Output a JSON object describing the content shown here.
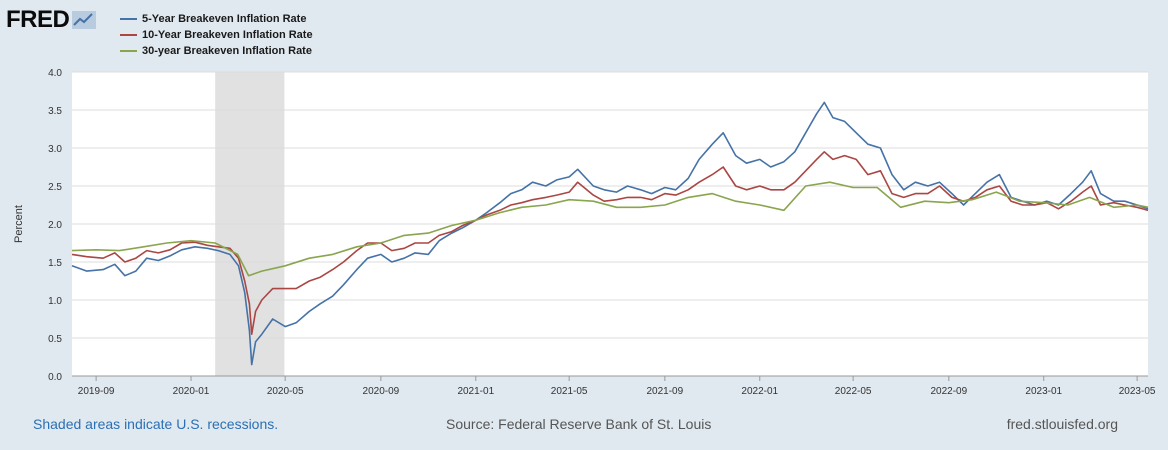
{
  "header": {
    "logo_text": "FRED"
  },
  "footer": {
    "note": "Shaded areas indicate U.S. recessions.",
    "source": "Source: Federal Reserve Bank of St. Louis",
    "site": "fred.stlouisfed.org"
  },
  "colors": {
    "background": "#e1e9f0",
    "plot_background": "#ffffff",
    "recession_shade": "#e1e1e1"
  },
  "chart_data": {
    "type": "line",
    "title": "",
    "xlabel": "",
    "ylabel": "Percent",
    "ylim": [
      0,
      4
    ],
    "yticks": [
      "0.0",
      "0.5",
      "1.0",
      "1.5",
      "2.0",
      "2.5",
      "3.0",
      "3.5",
      "4.0"
    ],
    "xlim": [
      "2019-08-01",
      "2023-05-15"
    ],
    "xticks": [
      "2019-09",
      "2020-01",
      "2020-05",
      "2020-09",
      "2021-01",
      "2021-05",
      "2021-09",
      "2022-01",
      "2022-05",
      "2022-09",
      "2023-01",
      "2023-05"
    ],
    "grid": true,
    "legend_position": "top-left",
    "recessions": [
      [
        "2020-02-01",
        "2020-04-30"
      ]
    ],
    "series": [
      {
        "name": "5-Year Breakeven Inflation Rate",
        "color": "#4572a7",
        "points": [
          [
            "2019-08-01",
            1.45
          ],
          [
            "2019-08-20",
            1.38
          ],
          [
            "2019-09-10",
            1.4
          ],
          [
            "2019-09-25",
            1.47
          ],
          [
            "2019-10-08",
            1.32
          ],
          [
            "2019-10-22",
            1.38
          ],
          [
            "2019-11-05",
            1.55
          ],
          [
            "2019-11-20",
            1.52
          ],
          [
            "2019-12-05",
            1.58
          ],
          [
            "2019-12-20",
            1.66
          ],
          [
            "2020-01-06",
            1.7
          ],
          [
            "2020-01-22",
            1.68
          ],
          [
            "2020-02-05",
            1.65
          ],
          [
            "2020-02-20",
            1.6
          ],
          [
            "2020-03-02",
            1.45
          ],
          [
            "2020-03-10",
            1.1
          ],
          [
            "2020-03-16",
            0.6
          ],
          [
            "2020-03-19",
            0.15
          ],
          [
            "2020-03-24",
            0.45
          ],
          [
            "2020-04-01",
            0.55
          ],
          [
            "2020-04-15",
            0.75
          ],
          [
            "2020-05-01",
            0.65
          ],
          [
            "2020-05-15",
            0.7
          ],
          [
            "2020-06-01",
            0.85
          ],
          [
            "2020-06-15",
            0.95
          ],
          [
            "2020-07-01",
            1.05
          ],
          [
            "2020-07-15",
            1.2
          ],
          [
            "2020-08-01",
            1.4
          ],
          [
            "2020-08-15",
            1.55
          ],
          [
            "2020-09-01",
            1.6
          ],
          [
            "2020-09-15",
            1.5
          ],
          [
            "2020-10-01",
            1.55
          ],
          [
            "2020-10-15",
            1.62
          ],
          [
            "2020-11-01",
            1.6
          ],
          [
            "2020-11-15",
            1.78
          ],
          [
            "2020-12-01",
            1.88
          ],
          [
            "2020-12-15",
            1.95
          ],
          [
            "2021-01-01",
            2.05
          ],
          [
            "2021-01-15",
            2.15
          ],
          [
            "2021-02-01",
            2.28
          ],
          [
            "2021-02-15",
            2.4
          ],
          [
            "2021-03-01",
            2.45
          ],
          [
            "2021-03-15",
            2.55
          ],
          [
            "2021-04-01",
            2.5
          ],
          [
            "2021-04-15",
            2.58
          ],
          [
            "2021-05-01",
            2.62
          ],
          [
            "2021-05-12",
            2.72
          ],
          [
            "2021-06-01",
            2.5
          ],
          [
            "2021-06-15",
            2.45
          ],
          [
            "2021-07-01",
            2.42
          ],
          [
            "2021-07-15",
            2.5
          ],
          [
            "2021-08-01",
            2.45
          ],
          [
            "2021-08-15",
            2.4
          ],
          [
            "2021-09-01",
            2.48
          ],
          [
            "2021-09-15",
            2.45
          ],
          [
            "2021-10-01",
            2.6
          ],
          [
            "2021-10-15",
            2.85
          ],
          [
            "2021-11-01",
            3.05
          ],
          [
            "2021-11-15",
            3.2
          ],
          [
            "2021-12-01",
            2.9
          ],
          [
            "2021-12-15",
            2.8
          ],
          [
            "2022-01-01",
            2.85
          ],
          [
            "2022-01-15",
            2.75
          ],
          [
            "2022-02-01",
            2.82
          ],
          [
            "2022-02-15",
            2.95
          ],
          [
            "2022-03-01",
            3.2
          ],
          [
            "2022-03-15",
            3.45
          ],
          [
            "2022-03-25",
            3.6
          ],
          [
            "2022-04-05",
            3.4
          ],
          [
            "2022-04-20",
            3.35
          ],
          [
            "2022-05-05",
            3.2
          ],
          [
            "2022-05-20",
            3.05
          ],
          [
            "2022-06-05",
            3.0
          ],
          [
            "2022-06-20",
            2.65
          ],
          [
            "2022-07-05",
            2.45
          ],
          [
            "2022-07-20",
            2.55
          ],
          [
            "2022-08-05",
            2.5
          ],
          [
            "2022-08-20",
            2.55
          ],
          [
            "2022-09-05",
            2.4
          ],
          [
            "2022-09-20",
            2.25
          ],
          [
            "2022-10-05",
            2.4
          ],
          [
            "2022-10-20",
            2.55
          ],
          [
            "2022-11-05",
            2.65
          ],
          [
            "2022-11-20",
            2.35
          ],
          [
            "2022-12-05",
            2.3
          ],
          [
            "2022-12-20",
            2.25
          ],
          [
            "2023-01-05",
            2.3
          ],
          [
            "2023-01-20",
            2.25
          ],
          [
            "2023-02-05",
            2.4
          ],
          [
            "2023-02-20",
            2.55
          ],
          [
            "2023-03-03",
            2.7
          ],
          [
            "2023-03-15",
            2.4
          ],
          [
            "2023-04-01",
            2.3
          ],
          [
            "2023-04-15",
            2.3
          ],
          [
            "2023-05-01",
            2.25
          ],
          [
            "2023-05-15",
            2.2
          ]
        ]
      },
      {
        "name": "10-Year Breakeven Inflation Rate",
        "color": "#aa4643",
        "points": [
          [
            "2019-08-01",
            1.6
          ],
          [
            "2019-08-20",
            1.57
          ],
          [
            "2019-09-10",
            1.55
          ],
          [
            "2019-09-25",
            1.62
          ],
          [
            "2019-10-08",
            1.5
          ],
          [
            "2019-10-22",
            1.55
          ],
          [
            "2019-11-05",
            1.65
          ],
          [
            "2019-11-20",
            1.62
          ],
          [
            "2019-12-05",
            1.66
          ],
          [
            "2019-12-20",
            1.75
          ],
          [
            "2020-01-06",
            1.76
          ],
          [
            "2020-01-22",
            1.72
          ],
          [
            "2020-02-05",
            1.7
          ],
          [
            "2020-02-20",
            1.68
          ],
          [
            "2020-03-02",
            1.55
          ],
          [
            "2020-03-10",
            1.25
          ],
          [
            "2020-03-16",
            0.95
          ],
          [
            "2020-03-19",
            0.55
          ],
          [
            "2020-03-24",
            0.85
          ],
          [
            "2020-04-01",
            1.0
          ],
          [
            "2020-04-15",
            1.15
          ],
          [
            "2020-05-01",
            1.15
          ],
          [
            "2020-05-15",
            1.15
          ],
          [
            "2020-06-01",
            1.25
          ],
          [
            "2020-06-15",
            1.3
          ],
          [
            "2020-07-01",
            1.4
          ],
          [
            "2020-07-15",
            1.5
          ],
          [
            "2020-08-01",
            1.65
          ],
          [
            "2020-08-15",
            1.75
          ],
          [
            "2020-09-01",
            1.75
          ],
          [
            "2020-09-15",
            1.65
          ],
          [
            "2020-10-01",
            1.68
          ],
          [
            "2020-10-15",
            1.75
          ],
          [
            "2020-11-01",
            1.75
          ],
          [
            "2020-11-15",
            1.85
          ],
          [
            "2020-12-01",
            1.9
          ],
          [
            "2020-12-15",
            1.98
          ],
          [
            "2021-01-01",
            2.05
          ],
          [
            "2021-01-15",
            2.12
          ],
          [
            "2021-02-01",
            2.18
          ],
          [
            "2021-02-15",
            2.25
          ],
          [
            "2021-03-01",
            2.28
          ],
          [
            "2021-03-15",
            2.32
          ],
          [
            "2021-04-01",
            2.35
          ],
          [
            "2021-04-15",
            2.38
          ],
          [
            "2021-05-01",
            2.42
          ],
          [
            "2021-05-12",
            2.55
          ],
          [
            "2021-06-01",
            2.38
          ],
          [
            "2021-06-15",
            2.3
          ],
          [
            "2021-07-01",
            2.32
          ],
          [
            "2021-07-15",
            2.35
          ],
          [
            "2021-08-01",
            2.35
          ],
          [
            "2021-08-15",
            2.32
          ],
          [
            "2021-09-01",
            2.4
          ],
          [
            "2021-09-15",
            2.38
          ],
          [
            "2021-10-01",
            2.45
          ],
          [
            "2021-10-15",
            2.55
          ],
          [
            "2021-11-01",
            2.65
          ],
          [
            "2021-11-15",
            2.75
          ],
          [
            "2021-12-01",
            2.5
          ],
          [
            "2021-12-15",
            2.45
          ],
          [
            "2022-01-01",
            2.5
          ],
          [
            "2022-01-15",
            2.45
          ],
          [
            "2022-02-01",
            2.45
          ],
          [
            "2022-02-15",
            2.55
          ],
          [
            "2022-03-01",
            2.7
          ],
          [
            "2022-03-15",
            2.85
          ],
          [
            "2022-03-25",
            2.95
          ],
          [
            "2022-04-05",
            2.85
          ],
          [
            "2022-04-20",
            2.9
          ],
          [
            "2022-05-05",
            2.85
          ],
          [
            "2022-05-20",
            2.65
          ],
          [
            "2022-06-05",
            2.7
          ],
          [
            "2022-06-20",
            2.4
          ],
          [
            "2022-07-05",
            2.35
          ],
          [
            "2022-07-20",
            2.4
          ],
          [
            "2022-08-05",
            2.4
          ],
          [
            "2022-08-20",
            2.5
          ],
          [
            "2022-09-05",
            2.35
          ],
          [
            "2022-09-20",
            2.3
          ],
          [
            "2022-10-05",
            2.35
          ],
          [
            "2022-10-20",
            2.45
          ],
          [
            "2022-11-05",
            2.5
          ],
          [
            "2022-11-20",
            2.3
          ],
          [
            "2022-12-05",
            2.25
          ],
          [
            "2022-12-20",
            2.25
          ],
          [
            "2023-01-05",
            2.28
          ],
          [
            "2023-01-20",
            2.2
          ],
          [
            "2023-02-05",
            2.3
          ],
          [
            "2023-02-20",
            2.42
          ],
          [
            "2023-03-03",
            2.5
          ],
          [
            "2023-03-15",
            2.25
          ],
          [
            "2023-04-01",
            2.28
          ],
          [
            "2023-04-15",
            2.25
          ],
          [
            "2023-05-01",
            2.22
          ],
          [
            "2023-05-15",
            2.18
          ]
        ]
      },
      {
        "name": "30-year Breakeven Inflation Rate",
        "color": "#89a54e",
        "points": [
          [
            "2019-08-01",
            1.65
          ],
          [
            "2019-09-01",
            1.66
          ],
          [
            "2019-10-01",
            1.65
          ],
          [
            "2019-11-01",
            1.7
          ],
          [
            "2019-12-01",
            1.75
          ],
          [
            "2020-01-01",
            1.78
          ],
          [
            "2020-02-01",
            1.75
          ],
          [
            "2020-03-01",
            1.6
          ],
          [
            "2020-03-15",
            1.32
          ],
          [
            "2020-04-01",
            1.38
          ],
          [
            "2020-05-01",
            1.45
          ],
          [
            "2020-06-01",
            1.55
          ],
          [
            "2020-07-01",
            1.6
          ],
          [
            "2020-08-01",
            1.7
          ],
          [
            "2020-09-01",
            1.75
          ],
          [
            "2020-10-01",
            1.85
          ],
          [
            "2020-11-01",
            1.88
          ],
          [
            "2020-12-01",
            1.98
          ],
          [
            "2021-01-01",
            2.05
          ],
          [
            "2021-02-01",
            2.15
          ],
          [
            "2021-03-01",
            2.22
          ],
          [
            "2021-04-01",
            2.25
          ],
          [
            "2021-05-01",
            2.32
          ],
          [
            "2021-06-01",
            2.3
          ],
          [
            "2021-07-01",
            2.22
          ],
          [
            "2021-08-01",
            2.22
          ],
          [
            "2021-09-01",
            2.25
          ],
          [
            "2021-10-01",
            2.35
          ],
          [
            "2021-11-01",
            2.4
          ],
          [
            "2021-12-01",
            2.3
          ],
          [
            "2022-01-01",
            2.25
          ],
          [
            "2022-02-01",
            2.18
          ],
          [
            "2022-03-01",
            2.5
          ],
          [
            "2022-04-01",
            2.55
          ],
          [
            "2022-05-01",
            2.48
          ],
          [
            "2022-06-01",
            2.48
          ],
          [
            "2022-07-01",
            2.22
          ],
          [
            "2022-08-01",
            2.3
          ],
          [
            "2022-09-01",
            2.28
          ],
          [
            "2022-10-01",
            2.32
          ],
          [
            "2022-11-01",
            2.42
          ],
          [
            "2022-12-01",
            2.3
          ],
          [
            "2023-01-01",
            2.28
          ],
          [
            "2023-02-01",
            2.25
          ],
          [
            "2023-03-01",
            2.35
          ],
          [
            "2023-04-01",
            2.22
          ],
          [
            "2023-05-01",
            2.25
          ],
          [
            "2023-05-15",
            2.22
          ]
        ]
      }
    ]
  }
}
